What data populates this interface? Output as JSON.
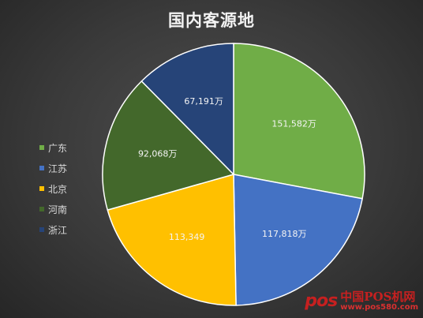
{
  "chart_data": {
    "type": "pie",
    "title": "国内客源地",
    "start_angle_deg": 0,
    "direction": "clockwise",
    "legend_position": "left",
    "categories": [
      "广东",
      "江苏",
      "北京",
      "河南",
      "浙江"
    ],
    "values": [
      151582,
      117818,
      113349,
      92068,
      67191
    ],
    "data_labels": [
      "151,582万",
      "117,818万",
      "113,349",
      "92,068万",
      "67,191万"
    ],
    "colors": [
      "#70ad47",
      "#4472c4",
      "#ffc000",
      "#43682b",
      "#264478"
    ]
  },
  "watermark": {
    "logo": "pos",
    "line1": "中国POS机网",
    "line2": "www.pos580.com"
  }
}
